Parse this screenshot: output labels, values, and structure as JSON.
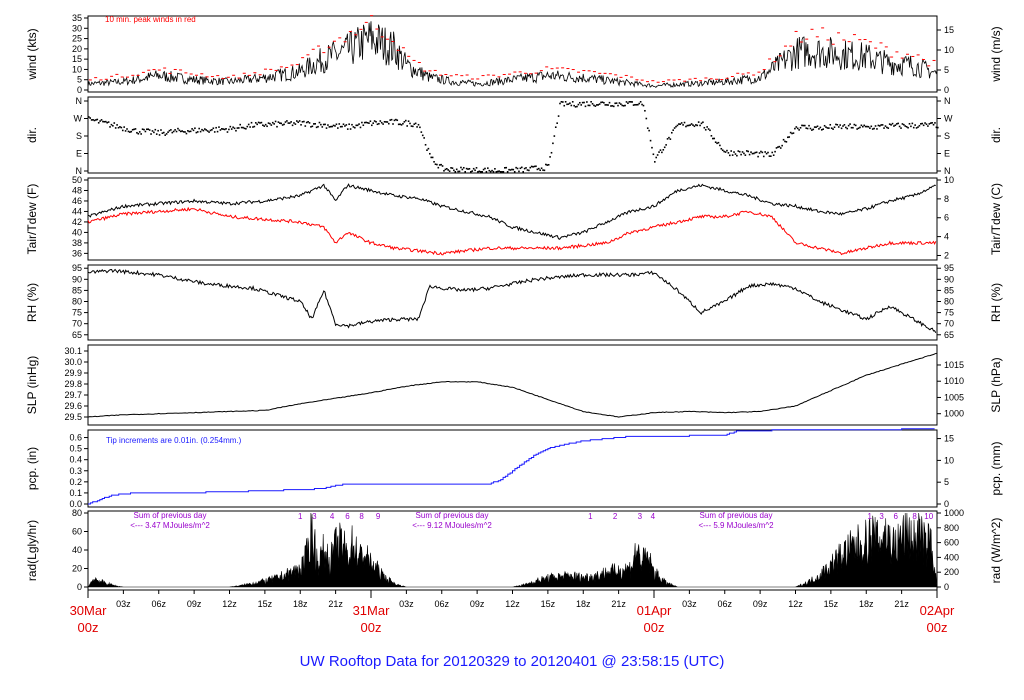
{
  "title": "UW Rooftop Data for 20120329  to  20120401 @ 23:58:15  (UTC)",
  "title_color": "#1a1aff",
  "colors": {
    "wind": "#000000",
    "peak": "#ff0000",
    "tair": "#000000",
    "tdew": "#ff0000",
    "pcp": "#1a1aff",
    "annotation_purple": "#9900cc"
  },
  "x_axis": {
    "hour_ticks": [
      "03z",
      "06z",
      "09z",
      "12z",
      "15z",
      "18z",
      "21z",
      "03z",
      "06z",
      "09z",
      "12z",
      "15z",
      "18z",
      "21z",
      "03z",
      "06z",
      "09z",
      "12z",
      "15z",
      "18z",
      "21z"
    ],
    "day_labels": [
      {
        "date": "30Mar",
        "hour": "00z"
      },
      {
        "date": "31Mar",
        "hour": "00z"
      },
      {
        "date": "01Apr",
        "hour": "00z"
      },
      {
        "date": "02Apr",
        "hour": "00z"
      }
    ],
    "range_hours": [
      0,
      72
    ]
  },
  "panels": {
    "wind": {
      "left_label": "wind (kts)",
      "right_label": "wind (m/s)",
      "left_ticks": [
        "0",
        "5",
        "10",
        "15",
        "20",
        "25",
        "30",
        "35"
      ],
      "right_ticks": [
        "0",
        "5",
        "10",
        "15"
      ],
      "note": "10 min. peak winds in red"
    },
    "dir": {
      "left_label": "dir.",
      "right_label": "dir.",
      "ticks": [
        "N",
        "W",
        "S",
        "E",
        "N"
      ]
    },
    "temp": {
      "left_label": "Tair/Tdew (F)",
      "right_label": "Tair/Tdew (C)",
      "left_ticks": [
        "36",
        "38",
        "40",
        "42",
        "44",
        "46",
        "48",
        "50"
      ],
      "right_ticks": [
        "2",
        "4",
        "6",
        "8",
        "10"
      ]
    },
    "rh": {
      "left_label": "RH (%)",
      "right_label": "RH (%)",
      "ticks": [
        "65",
        "70",
        "75",
        "80",
        "85",
        "90",
        "95"
      ]
    },
    "slp": {
      "left_label": "SLP (inHg)",
      "right_label": "SLP (hPa)",
      "left_ticks": [
        "29.5",
        "29.6",
        "29.7",
        "29.8",
        "29.9",
        "30.0",
        "30.1"
      ],
      "right_ticks": [
        "1000",
        "1005",
        "1010",
        "1015"
      ]
    },
    "pcp": {
      "left_label": "pcp. (in)",
      "right_label": "pcp. (mm)",
      "left_ticks": [
        "0.0",
        "0.1",
        "0.2",
        "0.3",
        "0.4",
        "0.5",
        "0.6"
      ],
      "right_ticks": [
        "0",
        "5",
        "10",
        "15"
      ],
      "note": "Tip increments are 0.01in. (0.254mm.)"
    },
    "rad": {
      "left_label": "rad(Lgly/hr)",
      "right_label": "rad (W/m^2)",
      "left_ticks": [
        "0",
        "20",
        "40",
        "60",
        "80"
      ],
      "right_ticks": [
        "0",
        "200",
        "400",
        "600",
        "800",
        "1000"
      ],
      "day_sums": [
        {
          "line1": "Sum of previous day",
          "line2": "<--- 3.47 MJoules/m^2"
        },
        {
          "line1": "Sum of previous day",
          "line2": "<--- 9.12 MJoules/m^2"
        },
        {
          "line1": "Sum of previous day",
          "line2": "<--- 5.9 MJoules/m^2"
        }
      ],
      "hour_markers": [
        {
          "label": "1",
          "hour": 18.0
        },
        {
          "label": "3",
          "hour": 19.2
        },
        {
          "label": "4",
          "hour": 20.7
        },
        {
          "label": "6",
          "hour": 22.0
        },
        {
          "label": "8",
          "hour": 23.2
        },
        {
          "label": "9",
          "hour": 24.6
        },
        {
          "label": "1",
          "hour": 42.6
        },
        {
          "label": "2",
          "hour": 44.7
        },
        {
          "label": "3",
          "hour": 46.8
        },
        {
          "label": "4",
          "hour": 47.9
        },
        {
          "label": "1",
          "hour": 66.3
        },
        {
          "label": "3",
          "hour": 67.3
        },
        {
          "label": "6",
          "hour": 68.5
        },
        {
          "label": "8",
          "hour": 70.1
        },
        {
          "label": "10",
          "hour": 71.3
        }
      ]
    }
  },
  "chart_data": [
    {
      "type": "line",
      "ylabel": "wind (kts)",
      "ylim": [
        0,
        35
      ],
      "series": [
        {
          "name": "wind",
          "x": [
            0,
            3,
            6,
            9,
            12,
            15,
            18,
            20,
            22,
            24,
            26,
            27,
            29,
            31,
            33,
            36,
            39,
            42,
            45,
            48,
            51,
            54,
            57,
            60,
            61,
            63,
            66,
            68,
            70,
            72
          ],
          "values": [
            3,
            4,
            7,
            5,
            4,
            6,
            9,
            15,
            19,
            25,
            20,
            12,
            6,
            4,
            3,
            5,
            7,
            6,
            4,
            2,
            3,
            4,
            6,
            18,
            19,
            18,
            16,
            13,
            12,
            8
          ]
        },
        {
          "name": "10 min. peak winds in red",
          "x": [
            0,
            3,
            6,
            9,
            12,
            15,
            18,
            20,
            22,
            24,
            26,
            27,
            29,
            31,
            33,
            36,
            39,
            42,
            45,
            48,
            51,
            54,
            57,
            60,
            61,
            63,
            66,
            68,
            70,
            72
          ],
          "values": [
            5,
            7,
            10,
            8,
            6,
            9,
            13,
            21,
            27,
            33,
            25,
            16,
            9,
            7,
            6,
            8,
            10,
            9,
            7,
            4,
            5,
            6,
            9,
            25,
            27,
            26,
            23,
            19,
            17,
            12
          ]
        }
      ]
    },
    {
      "type": "scatter",
      "ylabel": "dir.",
      "ylim": [
        0,
        360
      ],
      "x": [
        0,
        2,
        4,
        6,
        8,
        10,
        12,
        14,
        16,
        18,
        20,
        22,
        24,
        26,
        28,
        29,
        30,
        31,
        33,
        35,
        37,
        39,
        40,
        41,
        43,
        45,
        47,
        48,
        50,
        52,
        54,
        56,
        58,
        60,
        62,
        64,
        66,
        68,
        70,
        72
      ],
      "values": [
        270,
        240,
        210,
        200,
        210,
        215,
        220,
        240,
        245,
        250,
        240,
        230,
        250,
        255,
        245,
        70,
        15,
        10,
        8,
        6,
        10,
        25,
        350,
        348,
        352,
        350,
        355,
        60,
        240,
        250,
        100,
        95,
        85,
        230,
        225,
        232,
        228,
        235,
        238,
        240
      ]
    },
    {
      "type": "line",
      "ylabel": "Tair/Tdew (F)",
      "ylim": [
        35,
        50
      ],
      "series": [
        {
          "name": "Tair",
          "x": [
            0,
            3,
            6,
            9,
            12,
            15,
            18,
            20,
            21,
            22,
            24,
            26,
            28,
            30,
            32,
            34,
            36,
            38,
            40,
            42,
            44,
            46,
            48,
            50,
            52,
            54,
            56,
            58,
            60,
            62,
            64,
            66,
            68,
            70,
            72
          ],
          "values": [
            43,
            45,
            45.5,
            46,
            45.5,
            46,
            47,
            49,
            46,
            49,
            48,
            47,
            46.5,
            45,
            44,
            43,
            41,
            40,
            39,
            40,
            42,
            44,
            45,
            48,
            49,
            48,
            47,
            45.5,
            45,
            44,
            43.5,
            44.5,
            46,
            47,
            49
          ]
        },
        {
          "name": "Tdew",
          "x": [
            0,
            3,
            6,
            9,
            12,
            15,
            18,
            20,
            21,
            22,
            24,
            26,
            28,
            30,
            32,
            34,
            36,
            38,
            40,
            42,
            44,
            46,
            48,
            50,
            52,
            54,
            56,
            58,
            60,
            62,
            64,
            66,
            68,
            70,
            72
          ],
          "values": [
            42,
            43.5,
            44,
            44.5,
            43,
            42.5,
            42,
            41,
            38,
            40,
            38,
            37,
            36.5,
            36,
            36.5,
            37,
            37,
            37,
            37,
            37.5,
            38,
            40,
            41,
            42,
            43,
            43,
            44,
            43,
            38,
            37,
            36,
            37,
            38,
            38,
            38
          ]
        }
      ]
    },
    {
      "type": "line",
      "ylabel": "RH (%)",
      "ylim": [
        65,
        95
      ],
      "x": [
        0,
        2,
        4,
        6,
        8,
        10,
        12,
        14,
        16,
        18,
        19,
        20,
        21,
        22,
        24,
        26,
        28,
        29,
        30,
        32,
        34,
        36,
        38,
        40,
        42,
        44,
        46,
        48,
        50,
        52,
        54,
        56,
        58,
        60,
        62,
        64,
        66,
        68,
        70,
        72
      ],
      "values": [
        93,
        94,
        93,
        92,
        90,
        88,
        87,
        86,
        83,
        80,
        72,
        85,
        70,
        69,
        71,
        72,
        72,
        87,
        86,
        85,
        86,
        88,
        90,
        91,
        92,
        92,
        92,
        93,
        85,
        75,
        80,
        87,
        88,
        86,
        80,
        76,
        72,
        78,
        72,
        66
      ]
    },
    {
      "type": "line",
      "ylabel": "SLP (inHg)",
      "ylim": [
        29.45,
        30.1
      ],
      "x": [
        0,
        3,
        6,
        9,
        12,
        15,
        18,
        21,
        24,
        27,
        30,
        33,
        36,
        39,
        42,
        45,
        48,
        51,
        54,
        57,
        60,
        63,
        66,
        69,
        72
      ],
      "values": [
        29.5,
        29.52,
        29.53,
        29.54,
        29.55,
        29.56,
        29.62,
        29.67,
        29.72,
        29.78,
        29.82,
        29.82,
        29.77,
        29.66,
        29.55,
        29.5,
        29.54,
        29.55,
        29.54,
        29.55,
        29.6,
        29.74,
        29.88,
        29.98,
        30.08
      ]
    },
    {
      "type": "line",
      "ylabel": "pcp. (in)",
      "ylim": [
        0,
        0.65
      ],
      "x": [
        0,
        2,
        4,
        8,
        12,
        18,
        20,
        21,
        22,
        34,
        35,
        36,
        37,
        38,
        39,
        40,
        41,
        42,
        43,
        44,
        45,
        46,
        47,
        48,
        50,
        52,
        54,
        55,
        56,
        60,
        64,
        66,
        72
      ],
      "values": [
        0,
        0.08,
        0.1,
        0.1,
        0.11,
        0.13,
        0.14,
        0.17,
        0.18,
        0.18,
        0.22,
        0.3,
        0.38,
        0.45,
        0.5,
        0.53,
        0.55,
        0.57,
        0.58,
        0.59,
        0.6,
        0.61,
        0.61,
        0.61,
        0.61,
        0.62,
        0.62,
        0.66,
        0.66,
        0.67,
        0.67,
        0.67,
        0.68
      ]
    },
    {
      "type": "area",
      "ylabel": "rad(Lgly/hr)",
      "ylim": [
        0,
        80
      ],
      "x": [
        0,
        0.5,
        1,
        1.5,
        2,
        2.5,
        3,
        12,
        13,
        14,
        15,
        16,
        17,
        18,
        18.5,
        19,
        19.5,
        20,
        20.5,
        21,
        21.5,
        22,
        22.5,
        23,
        23.5,
        24,
        24.5,
        25,
        26,
        27,
        36,
        37,
        38,
        39,
        40,
        41,
        42,
        43,
        44,
        45,
        46,
        46.5,
        47,
        47.5,
        48,
        49,
        50,
        60,
        61,
        62,
        63,
        64,
        65,
        66,
        66.5,
        67,
        67.5,
        68,
        68.5,
        69,
        69.5,
        70,
        70.5,
        71,
        71.5,
        72
      ],
      "values": [
        0,
        12,
        8,
        5,
        3,
        1,
        0,
        0,
        2,
        5,
        8,
        12,
        18,
        25,
        40,
        80,
        30,
        50,
        35,
        55,
        60,
        45,
        60,
        40,
        45,
        30,
        25,
        15,
        4,
        0,
        0,
        3,
        8,
        12,
        14,
        15,
        13,
        15,
        20,
        22,
        26,
        50,
        35,
        40,
        20,
        6,
        0,
        0,
        6,
        15,
        30,
        45,
        55,
        62,
        70,
        60,
        75,
        65,
        55,
        70,
        80,
        62,
        75,
        55,
        65,
        0
      ]
    }
  ]
}
